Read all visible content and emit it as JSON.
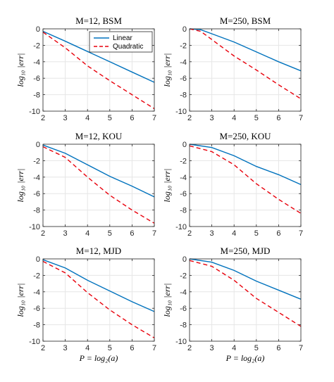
{
  "colors": {
    "linear": "#0072bd",
    "quadratic": "#e8000b"
  },
  "legend": {
    "linear": "Linear",
    "quadratic": "Quadratic"
  },
  "ylabel": "log₁₀ |err|",
  "xlabel": "P = log₂(a)",
  "chart_data": [
    {
      "type": "line",
      "title": "M=12, BSM",
      "xlim": [
        2,
        7
      ],
      "ylim": [
        -10,
        0
      ],
      "xticks": [
        2,
        3,
        4,
        5,
        6,
        7
      ],
      "yticks": [
        0,
        -2,
        -4,
        -6,
        -8,
        -10
      ],
      "grid": true,
      "legend_position": "top-right",
      "series": [
        {
          "name": "Linear",
          "style": "solid",
          "x": [
            2,
            3,
            4,
            5,
            6,
            7
          ],
          "y": [
            -0.3,
            -1.5,
            -2.75,
            -4.0,
            -5.25,
            -6.5
          ]
        },
        {
          "name": "Quadratic",
          "style": "dashed",
          "x": [
            2,
            3,
            4,
            5,
            6,
            7
          ],
          "y": [
            -0.4,
            -2.3,
            -4.5,
            -6.3,
            -8.0,
            -9.7
          ]
        }
      ]
    },
    {
      "type": "line",
      "title": "M=250, BSM",
      "xlim": [
        2,
        7
      ],
      "ylim": [
        -10,
        0
      ],
      "xticks": [
        2,
        3,
        4,
        5,
        6,
        7
      ],
      "yticks": [
        0,
        -2,
        -4,
        -6,
        -8,
        -10
      ],
      "grid": true,
      "series": [
        {
          "name": "Linear",
          "style": "solid",
          "x": [
            2,
            2.5,
            3,
            4,
            5,
            6,
            7
          ],
          "y": [
            0,
            -0.1,
            -0.6,
            -1.6,
            -2.8,
            -4.0,
            -5.1
          ]
        },
        {
          "name": "Quadratic",
          "style": "dashed",
          "x": [
            2,
            2.5,
            3,
            4,
            5,
            6,
            7
          ],
          "y": [
            0,
            -0.3,
            -1.3,
            -3.3,
            -5.0,
            -6.8,
            -8.5
          ]
        }
      ]
    },
    {
      "type": "line",
      "title": "M=12, KOU",
      "xlim": [
        2,
        7
      ],
      "ylim": [
        -10,
        0
      ],
      "xticks": [
        2,
        3,
        4,
        5,
        6,
        7
      ],
      "yticks": [
        0,
        -2,
        -4,
        -6,
        -8,
        -10
      ],
      "grid": true,
      "series": [
        {
          "name": "Linear",
          "style": "solid",
          "x": [
            2,
            3,
            4,
            5,
            6,
            7
          ],
          "y": [
            -0.1,
            -1.1,
            -2.5,
            -3.9,
            -5.1,
            -6.4
          ]
        },
        {
          "name": "Quadratic",
          "style": "dashed",
          "x": [
            2,
            3,
            4,
            5,
            6,
            7
          ],
          "y": [
            -0.3,
            -1.6,
            -4.0,
            -6.2,
            -8.0,
            -9.6
          ]
        }
      ]
    },
    {
      "type": "line",
      "title": "M=250, KOU",
      "xlim": [
        2,
        7
      ],
      "ylim": [
        -10,
        0
      ],
      "xticks": [
        2,
        3,
        4,
        5,
        6,
        7
      ],
      "yticks": [
        0,
        -2,
        -4,
        -6,
        -8,
        -10
      ],
      "grid": true,
      "series": [
        {
          "name": "Linear",
          "style": "solid",
          "x": [
            2,
            3,
            4,
            5,
            6,
            7
          ],
          "y": [
            0,
            -0.4,
            -1.4,
            -2.7,
            -3.7,
            -4.9
          ]
        },
        {
          "name": "Quadratic",
          "style": "dashed",
          "x": [
            2,
            3,
            4,
            5,
            6,
            7
          ],
          "y": [
            -0.2,
            -0.9,
            -2.5,
            -4.8,
            -6.7,
            -8.4
          ]
        }
      ]
    },
    {
      "type": "line",
      "title": "M=12, MJD",
      "xlim": [
        2,
        7
      ],
      "ylim": [
        -10,
        0
      ],
      "xticks": [
        2,
        3,
        4,
        5,
        6,
        7
      ],
      "yticks": [
        0,
        -2,
        -4,
        -6,
        -8,
        -10
      ],
      "grid": true,
      "series": [
        {
          "name": "Linear",
          "style": "solid",
          "x": [
            2,
            3,
            4,
            5,
            6,
            7
          ],
          "y": [
            -0.1,
            -1.1,
            -2.6,
            -3.9,
            -5.2,
            -6.4
          ]
        },
        {
          "name": "Quadratic",
          "style": "dashed",
          "x": [
            2,
            3,
            4,
            5,
            6,
            7
          ],
          "y": [
            -0.3,
            -1.7,
            -4.1,
            -6.2,
            -8.0,
            -9.6
          ]
        }
      ]
    },
    {
      "type": "line",
      "title": "M=250, MJD",
      "xlim": [
        2,
        7
      ],
      "ylim": [
        -10,
        0
      ],
      "xticks": [
        2,
        3,
        4,
        5,
        6,
        7
      ],
      "yticks": [
        0,
        -2,
        -4,
        -6,
        -8,
        -10
      ],
      "grid": true,
      "series": [
        {
          "name": "Linear",
          "style": "solid",
          "x": [
            2,
            3,
            4,
            5,
            6,
            7
          ],
          "y": [
            0,
            -0.4,
            -1.4,
            -2.7,
            -3.8,
            -4.9
          ]
        },
        {
          "name": "Quadratic",
          "style": "dashed",
          "x": [
            2,
            3,
            4,
            5,
            6,
            7
          ],
          "y": [
            -0.2,
            -0.9,
            -2.6,
            -4.8,
            -6.5,
            -8.2
          ]
        }
      ]
    }
  ]
}
